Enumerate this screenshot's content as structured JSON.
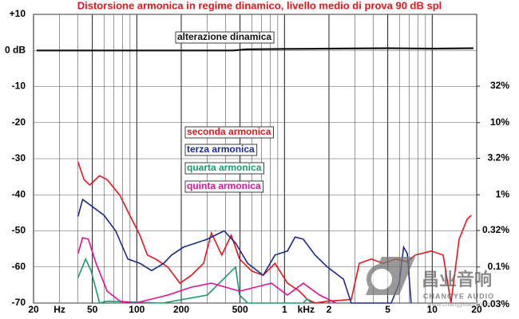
{
  "chart_data": {
    "type": "line",
    "title": "Distorsione armonica in regime dinamico, livello medio di prova 90 dB spl",
    "x_unit_labels": [
      "Hz",
      "kHz"
    ],
    "x_log": true,
    "xlim": [
      20,
      20000
    ],
    "xticks": [
      20,
      50,
      100,
      200,
      500,
      {
        "value": 1000,
        "label": "1"
      },
      {
        "value": 2000,
        "label": "2"
      },
      {
        "value": 5000,
        "label": "5"
      },
      {
        "value": 10000,
        "label": "10"
      },
      {
        "value": 20000,
        "label": "20"
      }
    ],
    "ylim": [
      -70,
      10
    ],
    "yticks": [
      {
        "value": 10,
        "label": "+10"
      },
      {
        "value": 0,
        "label": "0 dB"
      },
      -10,
      -20,
      -30,
      -40,
      -50,
      -60,
      -70
    ],
    "y2_log": true,
    "y2lim": [
      0.0316,
      316.2
    ],
    "y2ticks": [
      {
        "value": 32,
        "label": "32%"
      },
      {
        "value": 10,
        "label": "10%"
      },
      {
        "value": 3.2,
        "label": "3.2%"
      },
      {
        "value": 1,
        "label": "1%"
      },
      {
        "value": 0.32,
        "label": "0.32%"
      },
      {
        "value": 0.1,
        "label": "0.1%"
      },
      {
        "value": 0.03,
        "label": "0.03%"
      }
    ],
    "grid": true,
    "series": [
      {
        "name": "alterazione dinamica",
        "color": "#111111",
        "x": [
          21,
          50,
          100,
          200,
          450,
          550,
          1000,
          2000,
          5000,
          10000,
          19000
        ],
        "values": [
          0,
          0,
          0,
          0,
          0,
          0.3,
          0.4,
          0.5,
          0.6,
          0.5,
          0.6
        ]
      },
      {
        "name": "seconda armonica",
        "color": "#e8141c",
        "x": [
          40,
          44,
          48,
          56,
          63,
          77,
          87,
          105,
          118,
          134,
          162,
          196,
          234,
          283,
          320,
          376,
          436,
          496,
          598,
          717,
          862,
          1047,
          1260,
          1420,
          1610,
          1950,
          2830,
          3210,
          3870,
          4660,
          5620,
          6780,
          7670,
          9840,
          11860,
          13400,
          15200,
          17220,
          18400
        ],
        "values": [
          -30.9,
          -35.8,
          -37.3,
          -34.7,
          -35.8,
          -40.2,
          -44.6,
          -51.2,
          -56.7,
          -57.8,
          -60,
          -64.5,
          -62.3,
          -59,
          -50.6,
          -56.7,
          -51.2,
          -57.8,
          -61.1,
          -62.3,
          -59,
          -64.5,
          -66.7,
          -68.9,
          -70,
          -69.5,
          -69,
          -59,
          -57.8,
          -59,
          -57.8,
          -58.5,
          -56.7,
          -55.6,
          -56.7,
          -70,
          -52.3,
          -46.8,
          -45.7
        ]
      },
      {
        "name": "terza armonica",
        "color": "#1c2a8c",
        "x": [
          40,
          43,
          49,
          60,
          72,
          87,
          105,
          126,
          152,
          172,
          207,
          250,
          300,
          390,
          467,
          563,
          717,
          862,
          1047,
          1180,
          1340,
          1610,
          1950,
          2510,
          2830,
          5280,
          5980,
          6400,
          6780,
          7200
        ],
        "values": [
          -46,
          -41.3,
          -43,
          -45.7,
          -50,
          -57.8,
          -59,
          -61,
          -59,
          -56.7,
          -54.5,
          -53.4,
          -52.3,
          -50,
          -53.4,
          -59,
          -62.3,
          -56.7,
          -55.6,
          -51.7,
          -52.3,
          -56.7,
          -60,
          -63.4,
          -70,
          -70,
          -64.5,
          -54.5,
          -56.3,
          -70
        ]
      },
      {
        "name": "quarta armonica",
        "color": "#1a9a70",
        "x": [
          40,
          45,
          49,
          56,
          63,
          150,
          300,
          467,
          496,
          563,
          1340,
          1420,
          1530
        ],
        "values": [
          -63,
          -57.8,
          -61,
          -70,
          -69.5,
          -70,
          -67.8,
          -60,
          -67.8,
          -70,
          -70,
          -68.9,
          -70
        ]
      },
      {
        "name": "quinta armonica",
        "color": "#e0109a",
        "x": [
          40,
          43,
          47,
          53,
          63,
          77,
          98,
          162,
          234,
          320,
          496,
          815,
          1047,
          1340,
          1730,
          2230
        ],
        "values": [
          -56.3,
          -51.9,
          -52.3,
          -59,
          -66.7,
          -69.5,
          -70,
          -67.8,
          -65.6,
          -64.5,
          -66.7,
          -64.5,
          -67.8,
          -64.5,
          -67.8,
          -70
        ]
      }
    ],
    "watermark": {
      "text": "昌业音响",
      "sub": "CHANGYE AUDIO",
      "url": "www.changyeaudio.cn"
    }
  }
}
